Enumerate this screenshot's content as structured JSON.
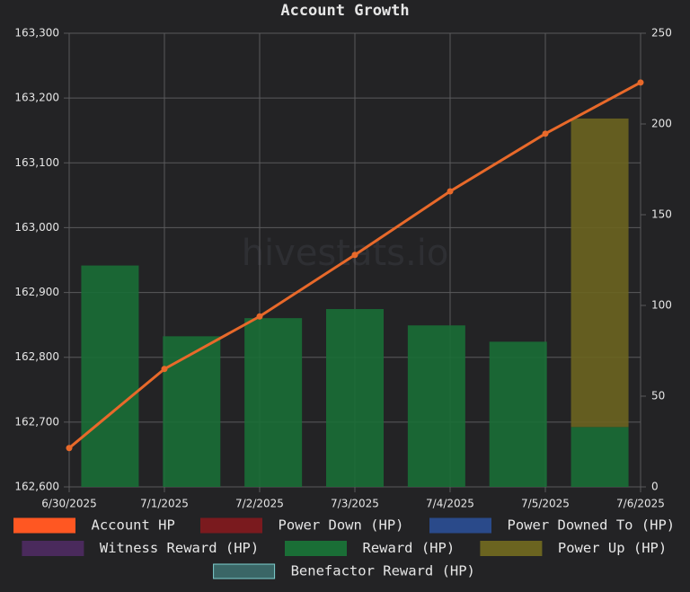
{
  "chart_data": {
    "type": "bar-line",
    "title": "Account Growth",
    "watermark": "hivestats.io",
    "categories": [
      "6/30/2025",
      "7/1/2025",
      "7/2/2025",
      "7/3/2025",
      "7/4/2025",
      "7/5/2025",
      "7/6/2025"
    ],
    "series": [
      {
        "name": "Account HP",
        "type": "line",
        "axis": "y",
        "color": "#e8692a",
        "legend_color": "#ff5722",
        "values": [
          162660,
          162782,
          162863,
          162958,
          163056,
          163145,
          163224
        ]
      },
      {
        "name": "Power Down (HP)",
        "type": "bar",
        "axis": "y2",
        "color": "#7a1a1e"
      },
      {
        "name": "Power Downed To (HP)",
        "type": "bar",
        "axis": "y2",
        "color": "#2a4a8a"
      },
      {
        "name": "Witness Reward (HP)",
        "type": "bar",
        "axis": "y2",
        "color": "#4a2a5c"
      },
      {
        "name": "Reward (HP)",
        "type": "bar",
        "axis": "y2",
        "color": "#1a6e36",
        "values": [
          122,
          83,
          93,
          98,
          89,
          80,
          33
        ]
      },
      {
        "name": "Power Up (HP)",
        "type": "bar",
        "axis": "y2",
        "color": "#6b6420",
        "values": [
          0,
          0,
          0,
          0,
          0,
          0,
          170
        ]
      },
      {
        "name": "Benefactor Reward (HP)",
        "type": "bar",
        "axis": "y2",
        "color": "#3a6666"
      }
    ],
    "stacked": true,
    "ylim": [
      162600,
      163300
    ],
    "yticks": [
      {
        "value": 162600,
        "label": "162,600"
      },
      {
        "value": 162700,
        "label": "162,700"
      },
      {
        "value": 162800,
        "label": "162,800"
      },
      {
        "value": 162900,
        "label": "162,900"
      },
      {
        "value": 163000,
        "label": "163,000"
      },
      {
        "value": 163100,
        "label": "163,100"
      },
      {
        "value": 163200,
        "label": "163,200"
      },
      {
        "value": 163300,
        "label": "163,300"
      }
    ],
    "y2lim": [
      0,
      250
    ],
    "y2ticks": [
      0,
      50,
      100,
      150,
      200,
      250
    ],
    "grid": true,
    "legend": "bottom"
  }
}
